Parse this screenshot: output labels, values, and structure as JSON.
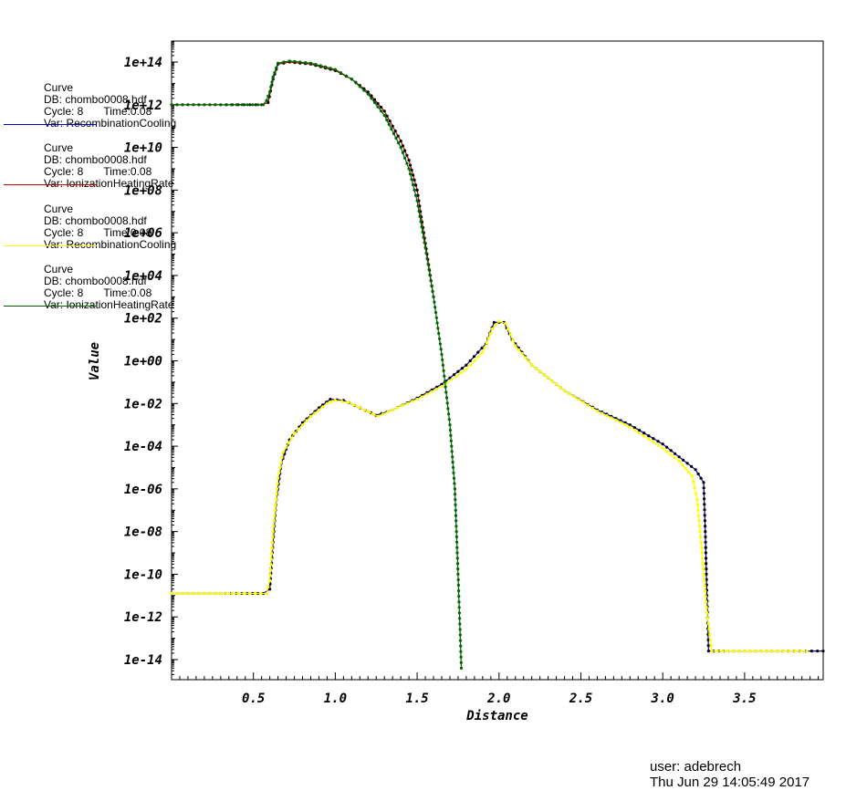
{
  "chart_data": {
    "type": "line",
    "xlabel": "Distance",
    "ylabel": "Value",
    "xlim": [
      0,
      3.98
    ],
    "ylog": true,
    "ylim_exp": [
      -15,
      15
    ],
    "x_ticks": [
      0.5,
      1.0,
      1.5,
      2.0,
      2.5,
      3.0,
      3.5
    ],
    "x_tick_labels": [
      "0.5",
      "1.0",
      "1.5",
      "2.0",
      "2.5",
      "3.0",
      "3.5"
    ],
    "y_ticks_exp": [
      14,
      12,
      10,
      8,
      6,
      4,
      2,
      0,
      -2,
      -4,
      -6,
      -8,
      -10,
      -12,
      -14
    ],
    "y_tick_labels": [
      "1e+14",
      "1e+12",
      "1e+10",
      "1e+08",
      "1e+06",
      "1e+04",
      "1e+02",
      "1e+00",
      "1e-02",
      "1e-04",
      "1e-06",
      "1e-08",
      "1e-10",
      "1e-12",
      "1e-14"
    ],
    "series": [
      {
        "name": "Var: RecombinationCooling",
        "color": "#0000cc",
        "marker_color": "#000000",
        "points": [
          [
            0,
            -10.9
          ],
          [
            0.3,
            -10.9
          ],
          [
            0.56,
            -10.9
          ],
          [
            0.6,
            -10.7
          ],
          [
            0.62,
            -8.5
          ],
          [
            0.64,
            -6.5
          ],
          [
            0.67,
            -4.8
          ],
          [
            0.72,
            -3.7
          ],
          [
            0.8,
            -2.9
          ],
          [
            0.9,
            -2.2
          ],
          [
            0.97,
            -1.8
          ],
          [
            1.05,
            -1.85
          ],
          [
            1.15,
            -2.2
          ],
          [
            1.25,
            -2.55
          ],
          [
            1.35,
            -2.3
          ],
          [
            1.5,
            -1.75
          ],
          [
            1.65,
            -1.1
          ],
          [
            1.8,
            -0.2
          ],
          [
            1.92,
            0.8
          ],
          [
            1.97,
            1.8
          ],
          [
            2.03,
            1.8
          ],
          [
            2.08,
            1.0
          ],
          [
            2.2,
            -0.2
          ],
          [
            2.4,
            -1.4
          ],
          [
            2.6,
            -2.3
          ],
          [
            2.8,
            -3.0
          ],
          [
            3.0,
            -3.9
          ],
          [
            3.1,
            -4.5
          ],
          [
            3.2,
            -5.1
          ],
          [
            3.25,
            -5.7
          ],
          [
            3.26,
            -8
          ],
          [
            3.27,
            -11
          ],
          [
            3.28,
            -13.6
          ],
          [
            3.4,
            -13.6
          ],
          [
            3.7,
            -13.6
          ],
          [
            3.98,
            -13.6
          ]
        ]
      },
      {
        "name": "Var: IonizationHeatingRate",
        "color": "#cc0000",
        "marker_color": "#000000",
        "points": [
          [
            0,
            12.0
          ],
          [
            0.3,
            12.0
          ],
          [
            0.55,
            12.0
          ],
          [
            0.59,
            12.1
          ],
          [
            0.62,
            13.2
          ],
          [
            0.65,
            13.9
          ],
          [
            0.72,
            14.0
          ],
          [
            0.85,
            13.9
          ],
          [
            1.0,
            13.6
          ],
          [
            1.1,
            13.2
          ],
          [
            1.2,
            12.6
          ],
          [
            1.3,
            11.7
          ],
          [
            1.4,
            10.3
          ],
          [
            1.45,
            9.4
          ],
          [
            1.5,
            8.0
          ],
          [
            1.55,
            5.5
          ],
          [
            1.6,
            3.0
          ]
        ]
      },
      {
        "name": "Var: RecombinationCooling",
        "color": "#ffff00",
        "marker_color": "#ffff00",
        "points": [
          [
            0,
            -10.9
          ],
          [
            0.3,
            -10.9
          ],
          [
            0.58,
            -10.9
          ],
          [
            0.6,
            -10.3
          ],
          [
            0.62,
            -8.0
          ],
          [
            0.65,
            -5.5
          ],
          [
            0.68,
            -4.3
          ],
          [
            0.75,
            -3.4
          ],
          [
            0.85,
            -2.6
          ],
          [
            0.95,
            -2.0
          ],
          [
            1.0,
            -1.85
          ],
          [
            1.08,
            -1.95
          ],
          [
            1.18,
            -2.3
          ],
          [
            1.26,
            -2.6
          ],
          [
            1.35,
            -2.3
          ],
          [
            1.5,
            -1.8
          ],
          [
            1.65,
            -1.2
          ],
          [
            1.8,
            -0.4
          ],
          [
            1.9,
            0.4
          ],
          [
            1.96,
            1.5
          ],
          [
            2.0,
            1.85
          ],
          [
            2.04,
            1.75
          ],
          [
            2.1,
            0.7
          ],
          [
            2.2,
            -0.2
          ],
          [
            2.4,
            -1.4
          ],
          [
            2.6,
            -2.35
          ],
          [
            2.8,
            -3.1
          ],
          [
            3.0,
            -4.1
          ],
          [
            3.1,
            -4.7
          ],
          [
            3.18,
            -5.4
          ],
          [
            3.21,
            -6.5
          ],
          [
            3.24,
            -9.0
          ],
          [
            3.27,
            -11.8
          ],
          [
            3.3,
            -13.6
          ],
          [
            3.5,
            -13.6
          ],
          [
            3.7,
            -13.6
          ],
          [
            3.88,
            -13.6
          ]
        ]
      },
      {
        "name": "Var: IonizationHeatingRate",
        "color": "#006400",
        "marker_color": "#006400",
        "points": [
          [
            0,
            12.0
          ],
          [
            0.3,
            12.0
          ],
          [
            0.56,
            12.0
          ],
          [
            0.58,
            12.2
          ],
          [
            0.6,
            12.6
          ],
          [
            0.62,
            13.3
          ],
          [
            0.65,
            13.95
          ],
          [
            0.72,
            14.05
          ],
          [
            0.85,
            13.95
          ],
          [
            1.0,
            13.65
          ],
          [
            1.1,
            13.2
          ],
          [
            1.2,
            12.5
          ],
          [
            1.3,
            11.5
          ],
          [
            1.4,
            10.0
          ],
          [
            1.45,
            9.0
          ],
          [
            1.5,
            7.5
          ],
          [
            1.55,
            5.3
          ],
          [
            1.6,
            3.0
          ],
          [
            1.65,
            0.3
          ],
          [
            1.7,
            -3.0
          ],
          [
            1.73,
            -6.0
          ],
          [
            1.75,
            -10.0
          ],
          [
            1.77,
            -14.4
          ]
        ]
      }
    ]
  },
  "legend": [
    {
      "title": "Curve",
      "db": "DB: chombo0008.hdf",
      "cycle": "Cycle: 8",
      "time": "Time:0.08",
      "var": "Var: RecombinationCooling",
      "color": "#0000cc"
    },
    {
      "title": "Curve",
      "db": "DB: chombo0008.hdf",
      "cycle": "Cycle: 8",
      "time": "Time:0.08",
      "var": "Var: IonizationHeatingRate",
      "color": "#cc0000"
    },
    {
      "title": "Curve",
      "db": "DB: chombo0008.hdf",
      "cycle": "Cycle: 8",
      "time": "Time:0.08",
      "var": "Var: RecombinationCooling",
      "color": "#ffff00"
    },
    {
      "title": "Curve",
      "db": "DB: chombo0008.hdf",
      "cycle": "Cycle: 8",
      "time": "Time:0.08",
      "var": "Var: IonizationHeatingRate",
      "color": "#006400"
    }
  ],
  "footer": {
    "user": "user: adebrech",
    "date": "Thu Jun 29 14:05:49 2017"
  }
}
